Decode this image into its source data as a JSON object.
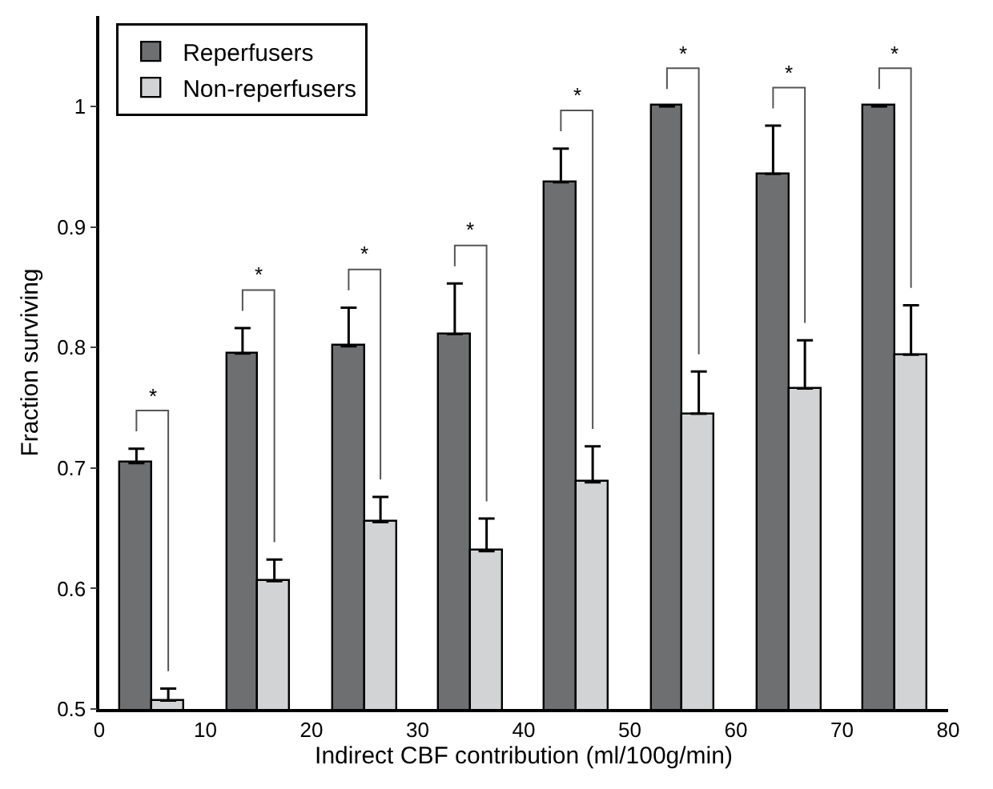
{
  "chart_data": {
    "type": "bar",
    "xlabel": "Indirect CBF contribution (ml/100g/min)",
    "ylabel": "Fraction surviving",
    "series": [
      {
        "name": "Reperfusers",
        "color": "#6e6f71",
        "x": [
          3.5,
          13.5,
          23.5,
          33.5,
          43.5,
          53.5,
          63.5,
          73.5
        ],
        "values": [
          0.704,
          0.795,
          0.801,
          0.811,
          0.937,
          1.0,
          0.944,
          1.0
        ],
        "errors": [
          0.012,
          0.021,
          0.032,
          0.042,
          0.028,
          null,
          0.04,
          null
        ]
      },
      {
        "name": "Non-reperfusers",
        "color": "#d2d3d5",
        "x": [
          6.5,
          16.5,
          26.5,
          36.5,
          46.5,
          56.5,
          66.5,
          76.5
        ],
        "values": [
          0.507,
          0.606,
          0.655,
          0.631,
          0.688,
          0.745,
          0.766,
          0.794
        ],
        "errors": [
          0.01,
          0.018,
          0.021,
          0.027,
          0.03,
          0.035,
          0.04,
          0.041
        ]
      }
    ],
    "xlim": [
      0,
      80
    ],
    "xticks": [
      0,
      10,
      20,
      30,
      40,
      50,
      60,
      70,
      80
    ],
    "ylim": [
      0.5,
      1.075
    ],
    "yticks": [
      0.5,
      0.6,
      0.7,
      0.8,
      0.9,
      1
    ],
    "annotations": [
      "*",
      "*",
      "*",
      "*",
      "*",
      "*",
      "*",
      "*"
    ],
    "legend": "top left"
  }
}
